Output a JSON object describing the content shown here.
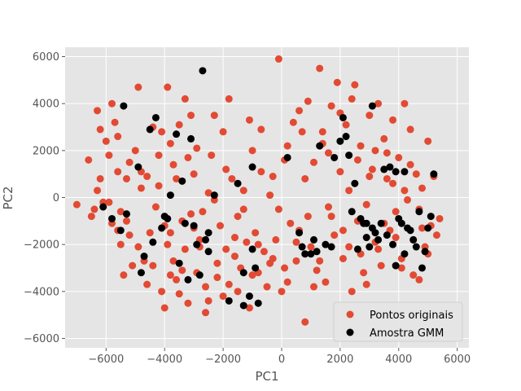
{
  "chart_data": {
    "type": "scatter",
    "xlabel": "PC1",
    "ylabel": "PC2",
    "xlim": [
      -7400,
      6400
    ],
    "ylim": [
      -6400,
      6400
    ],
    "xticks": [
      -6000,
      -4000,
      -2000,
      0,
      2000,
      4000,
      6000
    ],
    "yticks": [
      -6000,
      -4000,
      -2000,
      0,
      2000,
      4000,
      6000
    ],
    "grid": true,
    "legend_position": "lower-right",
    "background": "#e5e5e5",
    "series": [
      {
        "name": "Pontos originais",
        "color": "#e24a33",
        "points": [
          [
            -7000,
            -300
          ],
          [
            -6600,
            1600
          ],
          [
            -6500,
            -800
          ],
          [
            -6400,
            -500
          ],
          [
            -6300,
            3700
          ],
          [
            -6200,
            2900
          ],
          [
            -6200,
            800
          ],
          [
            -6100,
            -200
          ],
          [
            -6000,
            2400
          ],
          [
            -5900,
            1800
          ],
          [
            -5800,
            4000
          ],
          [
            -5800,
            -1100
          ],
          [
            -5700,
            3200
          ],
          [
            -5600,
            2600
          ],
          [
            -5600,
            1100
          ],
          [
            -5500,
            -600
          ],
          [
            -5500,
            -2000
          ],
          [
            -5400,
            -3300
          ],
          [
            -5300,
            800
          ],
          [
            -5200,
            -1600
          ],
          [
            -5100,
            -2900
          ],
          [
            -5000,
            2000
          ],
          [
            -4900,
            4700
          ],
          [
            -4900,
            -2100
          ],
          [
            -4800,
            1100
          ],
          [
            -4700,
            -2700
          ],
          [
            -4600,
            900
          ],
          [
            -4400,
            -2900
          ],
          [
            -4300,
            -400
          ],
          [
            -4200,
            1800
          ],
          [
            -4100,
            2800
          ],
          [
            -4100,
            -4000
          ],
          [
            -4000,
            -1200
          ],
          [
            -4000,
            -4700
          ],
          [
            -3900,
            4700
          ],
          [
            -3800,
            2300
          ],
          [
            -3800,
            -1500
          ],
          [
            -3700,
            -2700
          ],
          [
            -3600,
            -3500
          ],
          [
            -3600,
            800
          ],
          [
            -3500,
            3100
          ],
          [
            -3500,
            -4100
          ],
          [
            -3400,
            -1000
          ],
          [
            -3300,
            4200
          ],
          [
            -3300,
            -2200
          ],
          [
            -3200,
            -4500
          ],
          [
            -3100,
            3500
          ],
          [
            -3000,
            -1300
          ],
          [
            -3000,
            1000
          ],
          [
            -2900,
            2100
          ],
          [
            -2900,
            -3200
          ],
          [
            -2800,
            -2100
          ],
          [
            -2700,
            -600
          ],
          [
            -2600,
            -3800
          ],
          [
            -2500,
            -4400
          ],
          [
            -2400,
            1800
          ],
          [
            -2300,
            3500
          ],
          [
            -2200,
            -2800
          ],
          [
            -2100,
            -1200
          ],
          [
            -2000,
            -4200
          ],
          [
            -2000,
            2800
          ],
          [
            -1900,
            -2200
          ],
          [
            -1800,
            -3700
          ],
          [
            -1700,
            800
          ],
          [
            -1600,
            -1700
          ],
          [
            -1500,
            -4000
          ],
          [
            -1400,
            -3000
          ],
          [
            -1300,
            300
          ],
          [
            -1200,
            -1900
          ],
          [
            -1100,
            -4700
          ],
          [
            -1000,
            2000
          ],
          [
            -900,
            -1500
          ],
          [
            -800,
            -3200
          ],
          [
            -700,
            2900
          ],
          [
            -600,
            -2300
          ],
          [
            -500,
            -3800
          ],
          [
            -400,
            100
          ],
          [
            -300,
            -2600
          ],
          [
            -200,
            -1800
          ],
          [
            -100,
            5900
          ],
          [
            0,
            -4000
          ],
          [
            100,
            1600
          ],
          [
            200,
            -3600
          ],
          [
            300,
            -1100
          ],
          [
            400,
            3200
          ],
          [
            500,
            -2700
          ],
          [
            600,
            -1400
          ],
          [
            700,
            2800
          ],
          [
            800,
            -5300
          ],
          [
            900,
            4100
          ],
          [
            1000,
            -2100
          ],
          [
            1100,
            1500
          ],
          [
            1200,
            -3100
          ],
          [
            1300,
            5500
          ],
          [
            1400,
            2300
          ],
          [
            1500,
            -3600
          ],
          [
            1600,
            -400
          ],
          [
            1700,
            3900
          ],
          [
            1800,
            -1600
          ],
          [
            1900,
            4900
          ],
          [
            2000,
            1100
          ],
          [
            2100,
            -2600
          ],
          [
            2200,
            3100
          ],
          [
            2300,
            300
          ],
          [
            2400,
            -4000
          ],
          [
            2500,
            4800
          ],
          [
            2600,
            -1000
          ],
          [
            2700,
            2200
          ],
          [
            2800,
            -3200
          ],
          [
            2900,
            -300
          ],
          [
            3000,
            3500
          ],
          [
            3100,
            1200
          ],
          [
            3200,
            -1900
          ],
          [
            3300,
            4000
          ],
          [
            3400,
            -2900
          ],
          [
            3500,
            2500
          ],
          [
            3600,
            800
          ],
          [
            3700,
            -1400
          ],
          [
            3800,
            3300
          ],
          [
            3900,
            -600
          ],
          [
            4000,
            1700
          ],
          [
            4100,
            -2600
          ],
          [
            4200,
            4000
          ],
          [
            4300,
            -100
          ],
          [
            4400,
            2900
          ],
          [
            4500,
            -1800
          ],
          [
            4600,
            1000
          ],
          [
            4700,
            -3500
          ],
          [
            4800,
            400
          ],
          [
            4900,
            -2100
          ],
          [
            5000,
            2400
          ],
          [
            5100,
            -1200
          ],
          [
            5200,
            900
          ],
          [
            5300,
            -1600
          ],
          [
            5400,
            -900
          ],
          [
            -6300,
            300
          ],
          [
            -5900,
            -200
          ],
          [
            -5300,
            -1000
          ],
          [
            -4800,
            400
          ],
          [
            -4500,
            -1500
          ],
          [
            -4200,
            500
          ],
          [
            -3900,
            -2000
          ],
          [
            -3700,
            1400
          ],
          [
            -3400,
            -3100
          ],
          [
            -3100,
            -700
          ],
          [
            -2800,
            -1800
          ],
          [
            -2500,
            200
          ],
          [
            -2200,
            -3400
          ],
          [
            -1900,
            1200
          ],
          [
            -1600,
            -2500
          ],
          [
            -1300,
            -500
          ],
          [
            -1000,
            -3300
          ],
          [
            -700,
            1100
          ],
          [
            -400,
            -2800
          ],
          [
            -100,
            -500
          ],
          [
            200,
            2200
          ],
          [
            500,
            -1900
          ],
          [
            800,
            800
          ],
          [
            1100,
            -3800
          ],
          [
            1400,
            2800
          ],
          [
            1700,
            -800
          ],
          [
            2000,
            3600
          ],
          [
            2300,
            -2100
          ],
          [
            2600,
            1600
          ],
          [
            2900,
            -3700
          ],
          [
            3200,
            2000
          ],
          [
            3500,
            -1100
          ],
          [
            3800,
            600
          ],
          [
            4100,
            -3000
          ],
          [
            4400,
            1400
          ],
          [
            4700,
            -500
          ],
          [
            5000,
            -2400
          ],
          [
            -5600,
            -1400
          ],
          [
            -5200,
            1500
          ],
          [
            -4600,
            -3700
          ],
          [
            -4400,
            3000
          ],
          [
            -3800,
            -3300
          ],
          [
            -3200,
            1700
          ],
          [
            -2600,
            -4900
          ],
          [
            -2300,
            -100
          ],
          [
            -1800,
            4200
          ],
          [
            -1500,
            -800
          ],
          [
            -1100,
            3300
          ],
          [
            -800,
            -2000
          ],
          [
            -300,
            900
          ],
          [
            100,
            -3000
          ],
          [
            600,
            3700
          ],
          [
            900,
            -800
          ],
          [
            1300,
            -2700
          ],
          [
            1600,
            1900
          ],
          [
            2100,
            -1400
          ],
          [
            2400,
            4200
          ],
          [
            2700,
            -2400
          ],
          [
            3000,
            900
          ],
          [
            3300,
            -2200
          ],
          [
            3600,
            1900
          ],
          [
            3900,
            -1700
          ],
          [
            4200,
            300
          ],
          [
            4500,
            -3300
          ],
          [
            4800,
            -1300
          ]
        ]
      },
      {
        "name": "Amostra GMM",
        "color": "#000000",
        "points": [
          [
            -6100,
            -400
          ],
          [
            -5800,
            -900
          ],
          [
            -5500,
            -1400
          ],
          [
            -5400,
            3900
          ],
          [
            -5300,
            -700
          ],
          [
            -4900,
            1300
          ],
          [
            -4800,
            -3200
          ],
          [
            -4700,
            -2500
          ],
          [
            -4500,
            2900
          ],
          [
            -4400,
            -1900
          ],
          [
            -4300,
            3400
          ],
          [
            -4100,
            -1300
          ],
          [
            -4000,
            -800
          ],
          [
            -3900,
            -900
          ],
          [
            -3800,
            100
          ],
          [
            -3600,
            2700
          ],
          [
            -3500,
            -2800
          ],
          [
            -3400,
            700
          ],
          [
            -3300,
            -1100
          ],
          [
            -3200,
            -3500
          ],
          [
            -3100,
            2500
          ],
          [
            -3000,
            -1200
          ],
          [
            -2900,
            -2000
          ],
          [
            -2800,
            -3300
          ],
          [
            -2700,
            5400
          ],
          [
            -2600,
            -1800
          ],
          [
            -2500,
            -1500
          ],
          [
            -2500,
            -2300
          ],
          [
            -2300,
            100
          ],
          [
            -1800,
            -4400
          ],
          [
            -1500,
            600
          ],
          [
            -1300,
            -3200
          ],
          [
            -1300,
            -4600
          ],
          [
            -1100,
            -4200
          ],
          [
            -1000,
            1300
          ],
          [
            -1000,
            -2200
          ],
          [
            -900,
            -3000
          ],
          [
            -800,
            -4500
          ],
          [
            200,
            1700
          ],
          [
            600,
            -1500
          ],
          [
            700,
            -2100
          ],
          [
            800,
            -2400
          ],
          [
            1000,
            -2400
          ],
          [
            1100,
            -1800
          ],
          [
            1200,
            -2300
          ],
          [
            1300,
            2200
          ],
          [
            1500,
            -2000
          ],
          [
            1700,
            -2100
          ],
          [
            1800,
            1700
          ],
          [
            2000,
            2400
          ],
          [
            2100,
            3400
          ],
          [
            2200,
            2600
          ],
          [
            2300,
            1800
          ],
          [
            2400,
            -600
          ],
          [
            2500,
            600
          ],
          [
            2600,
            -2200
          ],
          [
            2700,
            -900
          ],
          [
            2800,
            -1100
          ],
          [
            2900,
            -1700
          ],
          [
            3000,
            -2100
          ],
          [
            3100,
            -1300
          ],
          [
            3100,
            3900
          ],
          [
            3200,
            -1500
          ],
          [
            3300,
            -1800
          ],
          [
            3400,
            -1100
          ],
          [
            3500,
            1200
          ],
          [
            3600,
            -1600
          ],
          [
            3700,
            1300
          ],
          [
            3800,
            -2000
          ],
          [
            3900,
            -2900
          ],
          [
            4000,
            -900
          ],
          [
            4100,
            -1100
          ],
          [
            4200,
            -2400
          ],
          [
            4300,
            -1300
          ],
          [
            4400,
            -1400
          ],
          [
            4500,
            -1800
          ],
          [
            4600,
            -2100
          ],
          [
            4700,
            -600
          ],
          [
            4800,
            -3000
          ],
          [
            4900,
            -2300
          ],
          [
            5000,
            -1300
          ],
          [
            5100,
            -800
          ],
          [
            5200,
            1000
          ],
          [
            4200,
            1100
          ],
          [
            3900,
            1100
          ],
          [
            2900,
            -1100
          ]
        ]
      }
    ]
  }
}
